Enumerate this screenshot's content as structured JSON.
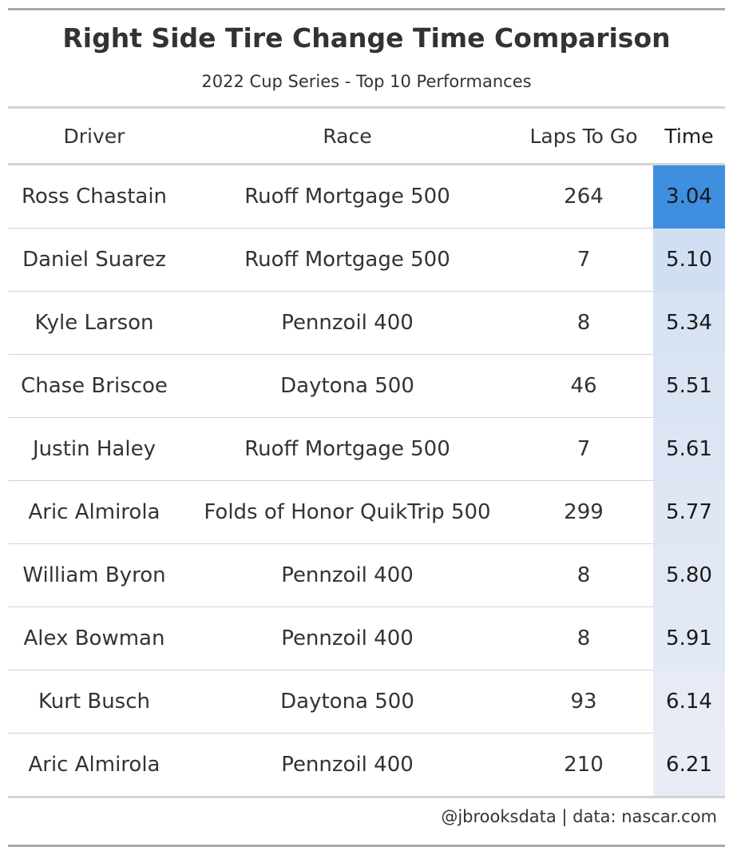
{
  "chart_data": {
    "type": "table",
    "title": "Right Side Tire Change Time Comparison",
    "subtitle": "2022 Cup Series - Top 10 Performances",
    "columns": [
      "Driver",
      "Race",
      "Laps To Go",
      "Time"
    ],
    "rows": [
      {
        "driver": "Ross Chastain",
        "race": "Ruoff Mortgage 500",
        "laps_to_go": "264",
        "time": "3.04"
      },
      {
        "driver": "Daniel Suarez",
        "race": "Ruoff Mortgage 500",
        "laps_to_go": "7",
        "time": "5.10"
      },
      {
        "driver": "Kyle Larson",
        "race": "Pennzoil 400",
        "laps_to_go": "8",
        "time": "5.34"
      },
      {
        "driver": "Chase Briscoe",
        "race": "Daytona 500",
        "laps_to_go": "46",
        "time": "5.51"
      },
      {
        "driver": "Justin Haley",
        "race": "Ruoff Mortgage 500",
        "laps_to_go": "7",
        "time": "5.61"
      },
      {
        "driver": "Aric Almirola",
        "race": "Folds of Honor QuikTrip 500",
        "laps_to_go": "299",
        "time": "5.77"
      },
      {
        "driver": "William Byron",
        "race": "Pennzoil 400",
        "laps_to_go": "8",
        "time": "5.80"
      },
      {
        "driver": "Alex Bowman",
        "race": "Pennzoil 400",
        "laps_to_go": "8",
        "time": "5.91"
      },
      {
        "driver": "Kurt Busch",
        "race": "Daytona 500",
        "laps_to_go": "93",
        "time": "6.14"
      },
      {
        "driver": "Aric Almirola",
        "race": "Pennzoil 400",
        "laps_to_go": "210",
        "time": "6.21"
      }
    ],
    "time_color_scale": {
      "low": "#3f8fe0",
      "high": "#e9ecf5"
    },
    "source_note": "@jbrooksdata | data: nascar.com"
  }
}
